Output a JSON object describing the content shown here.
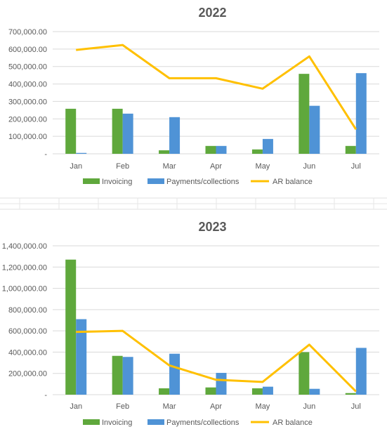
{
  "colors": {
    "invoicing": "#5fa83c",
    "payments": "#4f93d6",
    "ar_balance": "#ffc000",
    "gridline": "#d9d9d9",
    "text": "#595959"
  },
  "chart_data": [
    {
      "type": "bar",
      "title": "2022",
      "categories": [
        "Jan",
        "Feb",
        "Mar",
        "Apr",
        "May",
        "Jun",
        "Jul"
      ],
      "ylim": [
        0,
        700000
      ],
      "yticks": [
        0,
        100000,
        200000,
        300000,
        400000,
        500000,
        600000,
        700000
      ],
      "ytick_labels": [
        "-",
        "100,000.00",
        "200,000.00",
        "300,000.00",
        "400,000.00",
        "500,000.00",
        "600,000.00",
        "700,000.00"
      ],
      "grid": true,
      "legend_position": "bottom",
      "series": [
        {
          "name": "Invoicing",
          "type": "bar",
          "values": [
            258000,
            258000,
            20000,
            45000,
            25000,
            458000,
            45000
          ]
        },
        {
          "name": "Payments/collections",
          "type": "bar",
          "values": [
            5000,
            230000,
            210000,
            45000,
            85000,
            275000,
            462000
          ]
        },
        {
          "name": "AR balance",
          "type": "line",
          "values": [
            595000,
            623000,
            433000,
            433000,
            373000,
            558000,
            140000
          ]
        }
      ]
    },
    {
      "type": "bar",
      "title": "2023",
      "categories": [
        "Jan",
        "Feb",
        "Mar",
        "Apr",
        "May",
        "Jun",
        "Jul"
      ],
      "ylim": [
        0,
        1400000
      ],
      "yticks": [
        0,
        200000,
        400000,
        600000,
        800000,
        1000000,
        1200000,
        1400000
      ],
      "ytick_labels": [
        "-",
        "200,000.00",
        "400,000.00",
        "600,000.00",
        "800,000.00",
        "1,000,000.00",
        "1,200,000.00",
        "1,400,000.00"
      ],
      "grid": true,
      "legend_position": "bottom",
      "series": [
        {
          "name": "Invoicing",
          "type": "bar",
          "values": [
            1270000,
            365000,
            60000,
            68000,
            60000,
            400000,
            15000
          ]
        },
        {
          "name": "Payments/collections",
          "type": "bar",
          "values": [
            710000,
            355000,
            385000,
            205000,
            75000,
            55000,
            440000
          ]
        },
        {
          "name": "AR balance",
          "type": "line",
          "values": [
            590000,
            600000,
            275000,
            140000,
            120000,
            470000,
            30000
          ]
        }
      ]
    }
  ]
}
